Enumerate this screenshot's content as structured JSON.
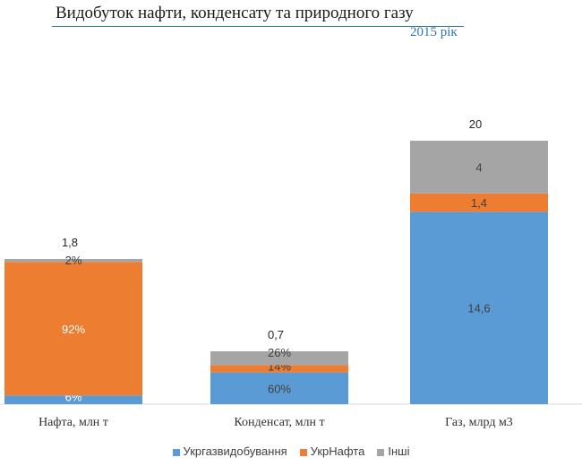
{
  "chart_data": {
    "type": "bar",
    "stacked": true,
    "normalized_heights": true,
    "title": "Видобуток нафти, конденсату та природного газу",
    "subtitle": "2015 рік",
    "categories": [
      "Нафта, млн т",
      "Конденсат, млн т",
      "Газ, млрд м3"
    ],
    "totals": [
      "1,8",
      "0,7",
      "20"
    ],
    "total_values": [
      1.8,
      0.7,
      20
    ],
    "series": [
      {
        "name": "Укргазвидобування",
        "color": "#5b9bd5",
        "values": [
          0.108,
          0.42,
          14.6
        ],
        "labels": [
          "6%",
          "60%",
          "14,6"
        ]
      },
      {
        "name": "УкрНафта",
        "color": "#ed7d31",
        "values": [
          1.656,
          0.098,
          1.4
        ],
        "labels": [
          "92%",
          "14%",
          "1,4"
        ]
      },
      {
        "name": "Інші",
        "color": "#a5a5a5",
        "values": [
          0.036,
          0.182,
          4
        ],
        "labels": [
          "2%",
          "26%",
          "4"
        ]
      }
    ],
    "legend_position": "bottom",
    "grid": false
  }
}
